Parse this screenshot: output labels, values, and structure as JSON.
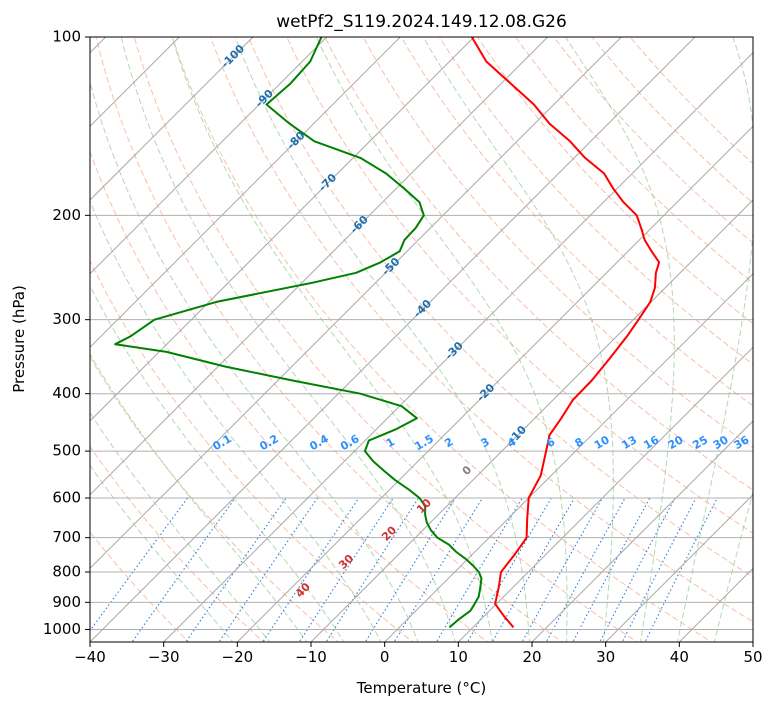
{
  "chart_data": {
    "type": "line",
    "title": "wetPf2_S119.2024.149.12.08.G26",
    "xlabel": "Temperature (°C)",
    "ylabel": "Pressure (hPa)",
    "xlim": [
      -40,
      50
    ],
    "ylim": [
      1050,
      100
    ],
    "y_scale": "log",
    "grid": true,
    "x_ticks": [
      -40,
      -30,
      -20,
      -10,
      0,
      10,
      20,
      30,
      40,
      50
    ],
    "x_tick_labels": [
      "−40",
      "−30",
      "−20",
      "−10",
      "0",
      "10",
      "20",
      "30",
      "40",
      "50"
    ],
    "y_ticks": [
      100,
      200,
      300,
      400,
      500,
      600,
      700,
      800,
      900,
      1000
    ],
    "y_tick_labels": [
      "100",
      "200",
      "300",
      "400",
      "500",
      "600",
      "700",
      "800",
      "900",
      "1000"
    ],
    "skew": 45,
    "isotherms": [
      -100,
      -90,
      -80,
      -70,
      -60,
      -50,
      -40,
      -30,
      -20,
      -10,
      0,
      10,
      20,
      30,
      40,
      50
    ],
    "dry_adiabats": [
      -30,
      -20,
      -10,
      0,
      10,
      20,
      30,
      40,
      50,
      60,
      70,
      80,
      90,
      100,
      110,
      120,
      130,
      140,
      150,
      160
    ],
    "moist_adiabats": [
      0,
      10,
      20,
      30,
      40
    ],
    "mixing_ratios": [
      0.1,
      0.2,
      0.4,
      0.6,
      1,
      1.5,
      2,
      3,
      4,
      6,
      8,
      10,
      13,
      16,
      20,
      25,
      30,
      36
    ],
    "isotherm_labels": [
      "-100",
      "-90",
      "-80",
      "-70",
      "-60",
      "-50",
      "-40",
      "-30",
      "-20",
      "-10"
    ],
    "mixing_ratio_labels": [
      "0.1",
      "0.2",
      "0.4",
      "0.6",
      "1",
      "1.5",
      "2",
      "3",
      "4",
      "6",
      "8",
      "10",
      "13",
      "16",
      "20",
      "25",
      "30",
      "36"
    ],
    "moist_adiabat_labels": [
      "0",
      "10",
      "20",
      "30",
      "40"
    ],
    "series": [
      {
        "color": "#ff0000",
        "pressure": [
          992,
          950,
          905,
          850,
          800,
          750,
          700,
          650,
          600,
          550,
          500,
          470,
          440,
          410,
          380,
          350,
          320,
          300,
          280,
          265,
          250,
          240,
          230,
          220,
          210,
          200,
          190,
          180,
          170,
          160,
          150,
          140,
          130,
          120,
          110,
          100
        ],
        "values": [
          15.5,
          12.7,
          9.8,
          8.1,
          6.3,
          5.8,
          5.1,
          2.6,
          0.0,
          -1.4,
          -4.0,
          -5.7,
          -6.4,
          -7.3,
          -7.4,
          -7.9,
          -8.6,
          -9.3,
          -10.1,
          -11.4,
          -13.3,
          -14.3,
          -16.8,
          -19.3,
          -21.4,
          -23.7,
          -27.3,
          -30.6,
          -33.8,
          -38.5,
          -42.8,
          -48.0,
          -52.7,
          -58.6,
          -65.0,
          -70.3
        ]
      },
      {
        "color": "#008000",
        "pressure": [
          992,
          960,
          930,
          910,
          880,
          850,
          820,
          800,
          780,
          760,
          740,
          720,
          700,
          680,
          660,
          640,
          620,
          600,
          580,
          560,
          540,
          520,
          500,
          480,
          460,
          440,
          420,
          400,
          380,
          360,
          340,
          330,
          320,
          300,
          280,
          260,
          250,
          240,
          230,
          220,
          210,
          200,
          190,
          180,
          170,
          160,
          150,
          140,
          130,
          120,
          110,
          100
        ],
        "values": [
          6.8,
          7.0,
          7.4,
          7.1,
          6.6,
          5.6,
          4.5,
          3.3,
          1.6,
          -0.3,
          -2.5,
          -4.4,
          -7.0,
          -8.9,
          -10.5,
          -11.8,
          -12.9,
          -14.8,
          -17.5,
          -20.5,
          -23.3,
          -26.1,
          -28.6,
          -29.5,
          -27.4,
          -26.0,
          -29.7,
          -37.0,
          -48.0,
          -59.0,
          -69.0,
          -77.0,
          -76.0,
          -75.0,
          -69.0,
          -58.6,
          -54.0,
          -52.1,
          -51.0,
          -51.9,
          -52.0,
          -52.6,
          -55.0,
          -59.0,
          -63.4,
          -69.0,
          -77.5,
          -83.3,
          -89.0,
          -88.6,
          -88.9,
          -90.7
        ]
      }
    ]
  }
}
